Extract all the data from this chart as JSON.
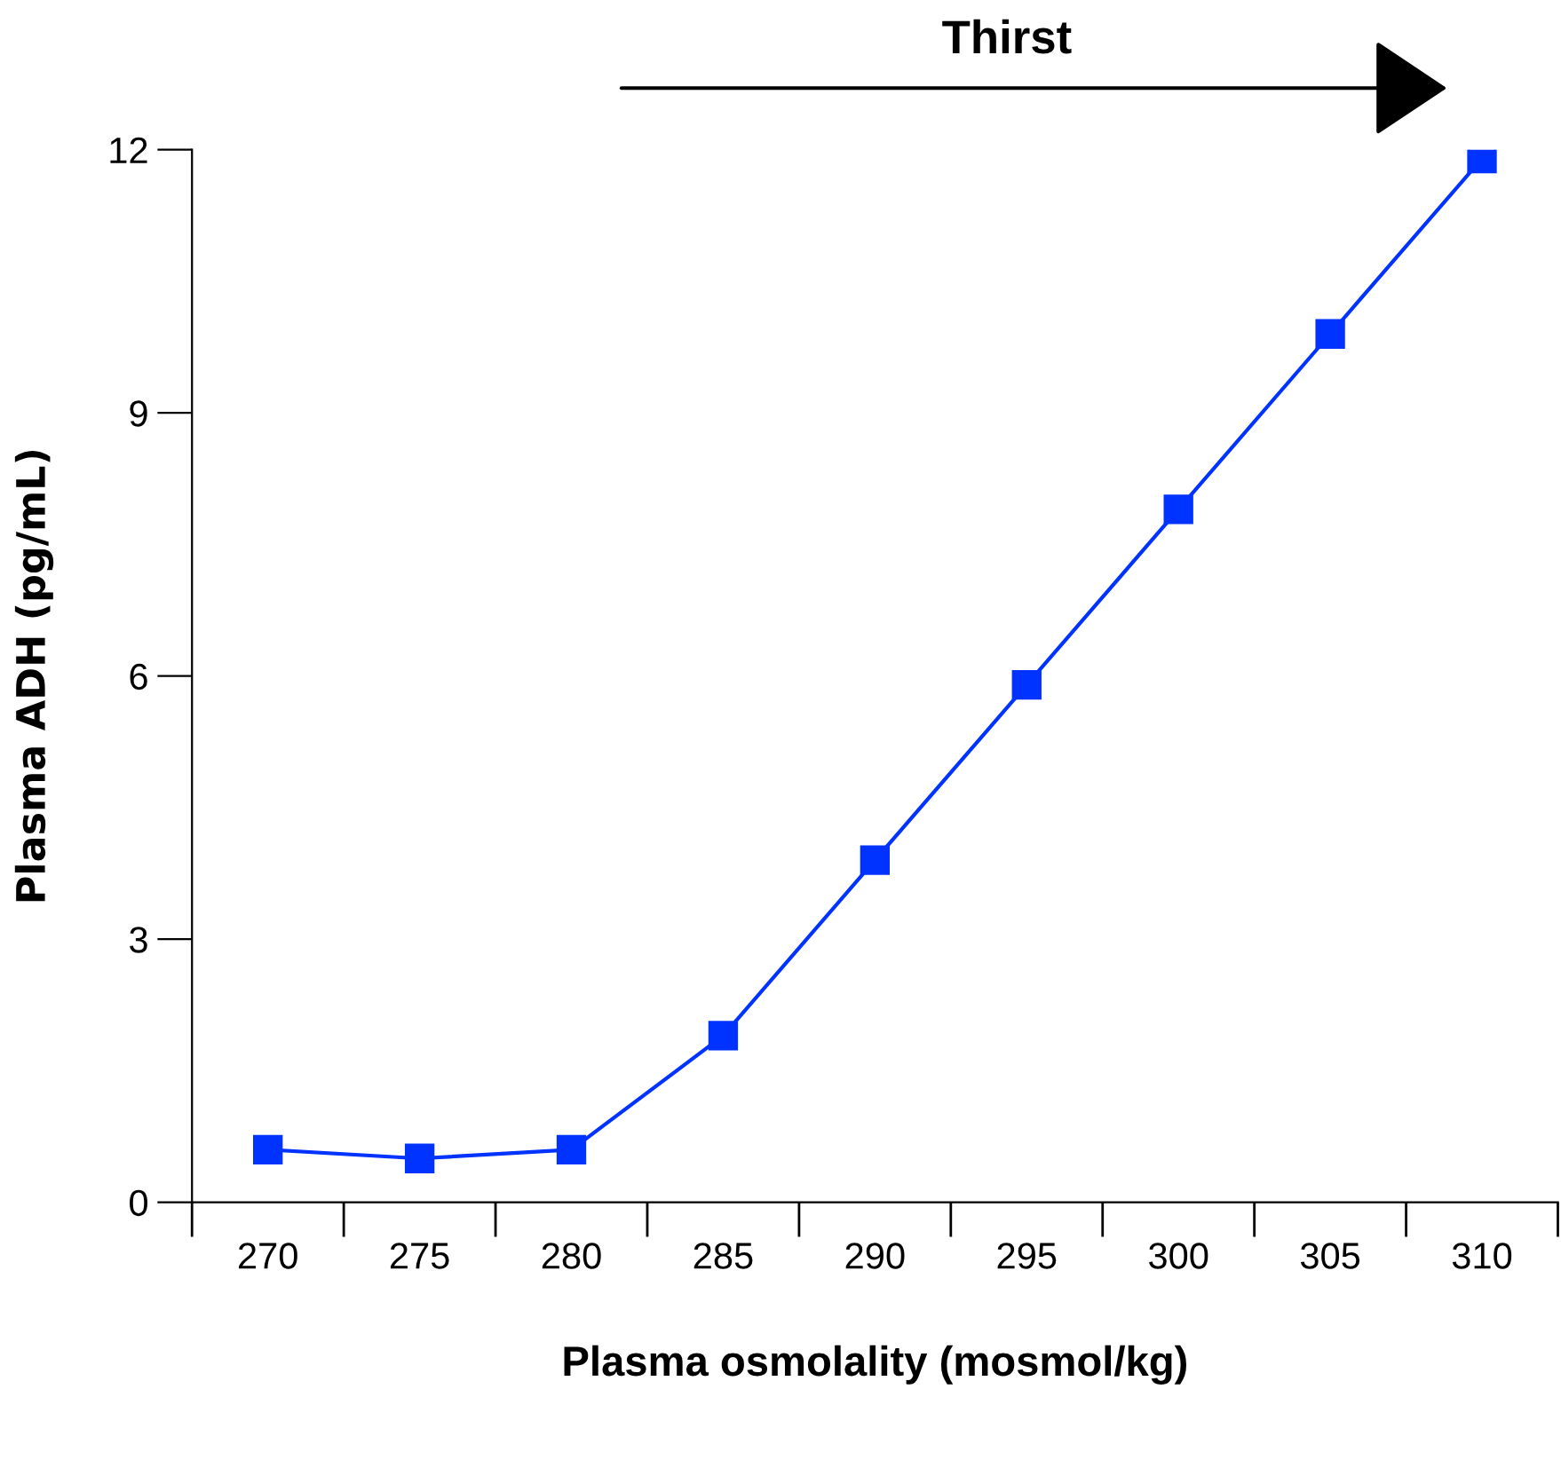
{
  "chart_data": {
    "type": "line",
    "xlabel": "Plasma osmolality (mosmol/kg)",
    "ylabel": "Plasma ADH (pg/mL)",
    "categories": [
      "270",
      "275",
      "280",
      "285",
      "290",
      "295",
      "300",
      "305",
      "310"
    ],
    "series": [
      {
        "color": "#0033ff",
        "values": [
          0.6,
          0.5,
          0.6,
          1.9,
          3.9,
          5.9,
          7.9,
          9.9,
          11.9
        ]
      }
    ],
    "ylim": [
      0,
      12
    ],
    "yticks": [
      0,
      3,
      6,
      9,
      12
    ],
    "marker": "square",
    "line_style": "solid",
    "grid": false,
    "legend": false,
    "annotations": [
      "Thirst"
    ]
  }
}
